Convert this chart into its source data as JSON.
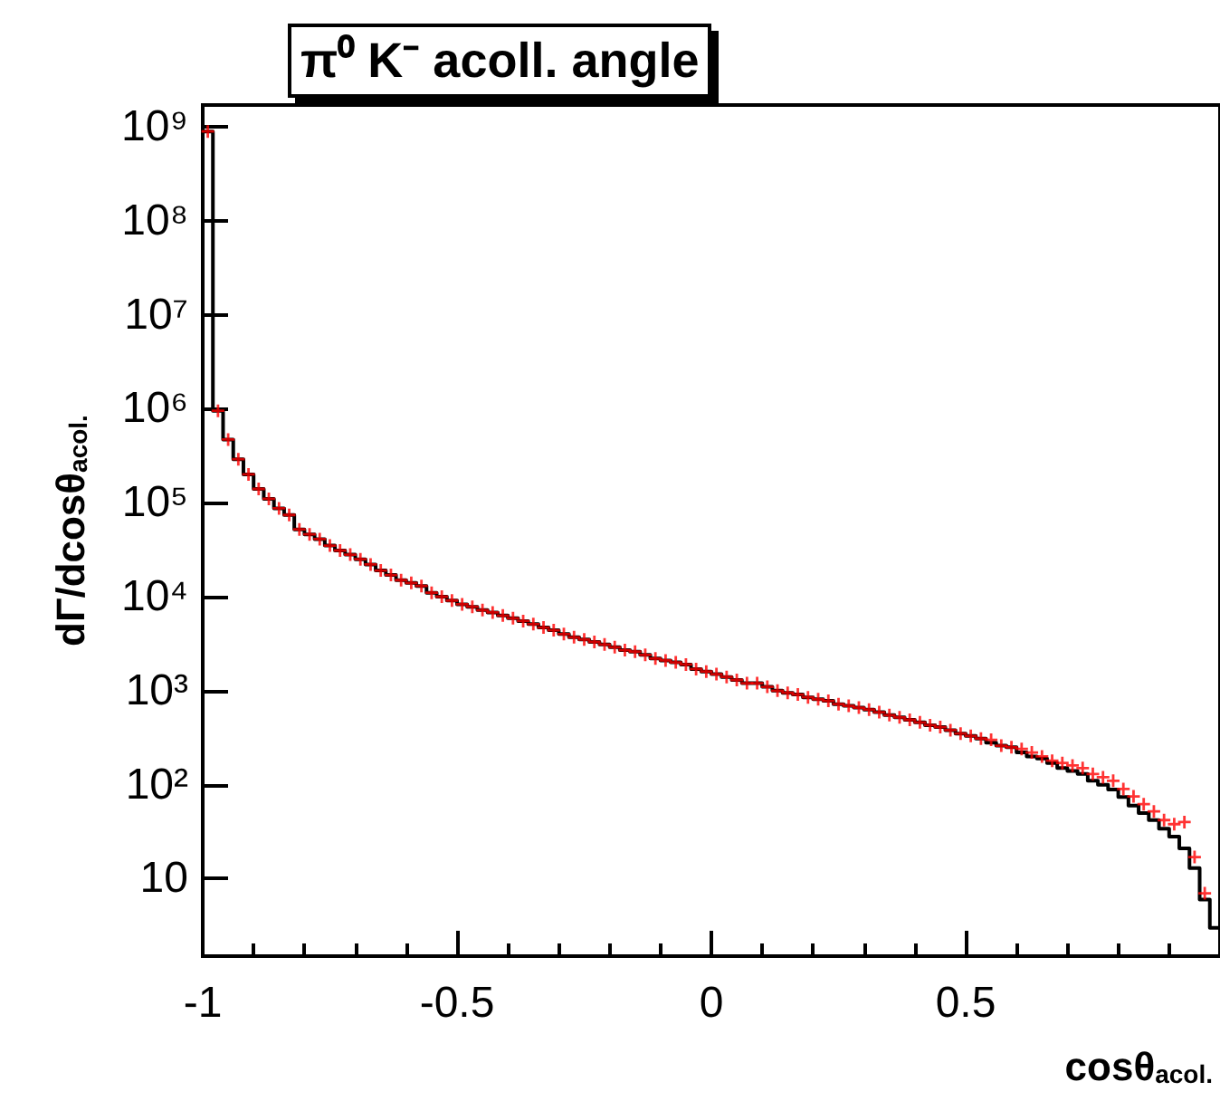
{
  "chart_data": {
    "type": "histogram",
    "title": "π⁰ K⁻ acoll. angle",
    "xlabel": "cosθ$_{acol.}$",
    "ylabel": "dΓ/dcosθ$_{acol.}$",
    "xlim": [
      -1,
      1
    ],
    "ylim": [
      1.5,
      1700000000
    ],
    "log": "y",
    "xticks": [
      -1,
      -0.5,
      0,
      0.5
    ],
    "yticks": [
      {
        "value": 10,
        "label": "10"
      },
      {
        "value": 100,
        "label": "10²"
      },
      {
        "value": 1000,
        "label": "10³"
      },
      {
        "value": 10000,
        "label": "10⁴"
      },
      {
        "value": 100000,
        "label": "10⁵"
      },
      {
        "value": 1000000,
        "label": "10⁶"
      },
      {
        "value": 10000000,
        "label": "10⁷"
      },
      {
        "value": 100000000,
        "label": "10⁸"
      },
      {
        "value": 1000000000,
        "label": "10⁹"
      }
    ],
    "bins": [
      -1,
      -0.98,
      -0.96,
      -0.94,
      -0.92,
      -0.9,
      -0.88,
      -0.86,
      -0.84,
      -0.82,
      -0.8,
      -0.78,
      -0.76,
      -0.74,
      -0.72,
      -0.7,
      -0.68,
      -0.66,
      -0.64,
      -0.62,
      -0.6,
      -0.58,
      -0.56,
      -0.54,
      -0.52,
      -0.5,
      -0.48,
      -0.46,
      -0.44,
      -0.42,
      -0.4,
      -0.38,
      -0.36,
      -0.34,
      -0.32,
      -0.3,
      -0.28,
      -0.26,
      -0.24,
      -0.22,
      -0.2,
      -0.18,
      -0.16,
      -0.14,
      -0.12,
      -0.1,
      -0.08,
      -0.06,
      -0.04,
      -0.02,
      0,
      0.02,
      0.04,
      0.06,
      0.08,
      0.1,
      0.12,
      0.14,
      0.16,
      0.18,
      0.2,
      0.22,
      0.24,
      0.26,
      0.28,
      0.3,
      0.32,
      0.34,
      0.36,
      0.38,
      0.4,
      0.42,
      0.44,
      0.46,
      0.48,
      0.5,
      0.52,
      0.54,
      0.56,
      0.58,
      0.6,
      0.62,
      0.64,
      0.66,
      0.68,
      0.7,
      0.72,
      0.74,
      0.76,
      0.78,
      0.8,
      0.82,
      0.84,
      0.86,
      0.88,
      0.9,
      0.92,
      0.94,
      0.96,
      0.98,
      1
    ],
    "series": [
      {
        "type": "histogram",
        "color": "#000000",
        "values": [
          890000000,
          950000,
          470000,
          290000,
          200000,
          140000,
          110000,
          87000,
          74000,
          52000,
          46000,
          41000,
          35000,
          31000,
          28000,
          25000,
          22000,
          19000,
          17000,
          15000,
          14000,
          13000,
          11000,
          10000,
          9100,
          8300,
          7800,
          7200,
          6800,
          6300,
          5900,
          5500,
          5100,
          4700,
          4400,
          4000,
          3700,
          3500,
          3300,
          3100,
          2900,
          2700,
          2600,
          2400,
          2200,
          2100,
          2000,
          1900,
          1700,
          1600,
          1500,
          1400,
          1300,
          1200,
          1200,
          1100,
          1000,
          950,
          910,
          850,
          810,
          780,
          720,
          690,
          660,
          630,
          590,
          550,
          520,
          490,
          460,
          430,
          410,
          380,
          350,
          330,
          310,
          280,
          260,
          250,
          220,
          200,
          190,
          170,
          150,
          140,
          130,
          110,
          100,
          89,
          74,
          60,
          50,
          42,
          34,
          28,
          21,
          13,
          6,
          3
        ]
      },
      {
        "type": "scatter",
        "color": "#ff0000",
        "marker": "cross",
        "x": [
          -0.99,
          -0.97,
          -0.95,
          -0.93,
          -0.91,
          -0.89,
          -0.87,
          -0.85,
          -0.83,
          -0.81,
          -0.79,
          -0.77,
          -0.75,
          -0.73,
          -0.71,
          -0.69,
          -0.67,
          -0.65,
          -0.63,
          -0.61,
          -0.59,
          -0.57,
          -0.55,
          -0.53,
          -0.51,
          -0.49,
          -0.47,
          -0.45,
          -0.43,
          -0.41,
          -0.39,
          -0.37,
          -0.35,
          -0.33,
          -0.31,
          -0.29,
          -0.27,
          -0.25,
          -0.23,
          -0.21,
          -0.19,
          -0.17,
          -0.15,
          -0.13,
          -0.11,
          -0.09,
          -0.07,
          -0.05,
          -0.03,
          -0.01,
          0.01,
          0.03,
          0.05,
          0.07,
          0.09,
          0.11,
          0.13,
          0.15,
          0.17,
          0.19,
          0.21,
          0.23,
          0.25,
          0.27,
          0.29,
          0.31,
          0.33,
          0.35,
          0.37,
          0.39,
          0.41,
          0.43,
          0.45,
          0.47,
          0.49,
          0.51,
          0.53,
          0.55,
          0.57,
          0.59,
          0.61,
          0.63,
          0.65,
          0.67,
          0.69,
          0.71,
          0.73,
          0.75,
          0.77,
          0.79,
          0.81,
          0.83,
          0.85,
          0.87,
          0.89,
          0.91,
          0.93,
          0.95,
          0.97
        ],
        "values": [
          890000000,
          950000,
          470000,
          290000,
          200000,
          140000,
          110000,
          87000,
          74000,
          52000,
          46000,
          41000,
          35000,
          31000,
          28000,
          25000,
          22000,
          19000,
          17000,
          15000,
          14000,
          13000,
          11000,
          10000,
          9100,
          8300,
          7800,
          7200,
          6800,
          6300,
          5900,
          5500,
          5100,
          4700,
          4400,
          4000,
          3700,
          3500,
          3300,
          3100,
          2900,
          2700,
          2600,
          2400,
          2200,
          2100,
          2000,
          1900,
          1700,
          1600,
          1500,
          1400,
          1300,
          1200,
          1200,
          1100,
          1000,
          950,
          910,
          850,
          810,
          780,
          720,
          690,
          660,
          630,
          590,
          550,
          520,
          490,
          460,
          430,
          410,
          380,
          350,
          330,
          310,
          300,
          260,
          250,
          240,
          220,
          200,
          180,
          170,
          160,
          150,
          130,
          120,
          110,
          90,
          75,
          62,
          52,
          42,
          38,
          40,
          17,
          7
        ]
      }
    ]
  }
}
